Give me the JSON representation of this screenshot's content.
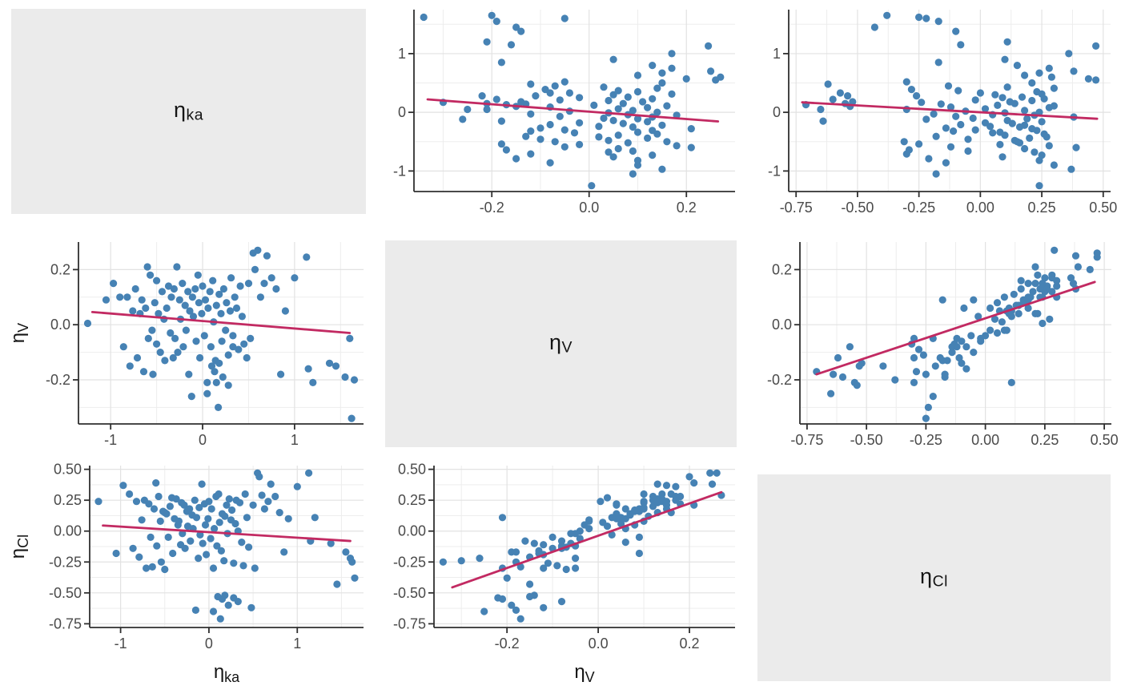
{
  "chart_data": {
    "type": "scatter",
    "subtype": "scatter-matrix",
    "description": "3x3 pairs plot of inter-individual random effects (eta) with scatter panels, linear trend lines and gray diagonal label tiles",
    "grid": "on",
    "legend": "none",
    "style": {
      "point_color": "#4682B4",
      "trend_color": "#C22A62",
      "diag_bg": "#EBEBEB",
      "panel_bg": "#FFFFFF",
      "grid_major": "#E2E2E2",
      "grid_minor": "#EDEDED",
      "axis_color": "#2F2F2F",
      "tick_label_color": "#4A4A4A",
      "title_color": "#141414"
    },
    "layout": {
      "cols": [
        467,
        466,
        467
      ],
      "rows": [
        278,
        282,
        306
      ]
    },
    "variables": [
      {
        "id": "ka",
        "label_base": "η",
        "label_sub": "ka",
        "range": [
          -1.35,
          1.75
        ],
        "ticks": [
          -1,
          0,
          1
        ],
        "tick_labels": [
          "-1",
          "0",
          "1"
        ],
        "minor": [
          -0.5,
          0.5,
          1.5
        ]
      },
      {
        "id": "V",
        "label_base": "η",
        "label_sub": "V",
        "range": [
          -0.36,
          0.3
        ],
        "ticks": [
          -0.2,
          0,
          0.2
        ],
        "tick_labels": [
          "-0.2",
          "0.0",
          "0.2"
        ],
        "minor": [
          -0.3,
          -0.1,
          0.1
        ]
      },
      {
        "id": "Cl",
        "label_base": "η",
        "label_sub": "Cl",
        "range": [
          -0.78,
          0.53
        ],
        "ticks": [
          -0.75,
          -0.5,
          -0.25,
          0,
          0.25,
          0.5
        ],
        "tick_labels": [
          "-0.75",
          "-0.50",
          "-0.25",
          "0.00",
          "0.25",
          "0.50"
        ],
        "minor": [
          -0.625,
          -0.375,
          -0.125,
          0.125,
          0.375
        ]
      }
    ],
    "point_order": [
      "ka",
      "V",
      "Cl"
    ],
    "points": [
      [
        -1.25,
        0.005,
        0.24
      ],
      [
        -1.05,
        0.09,
        -0.18
      ],
      [
        -0.97,
        0.15,
        0.37
      ],
      [
        -0.9,
        0.1,
        0.3
      ],
      [
        -0.86,
        -0.08,
        -0.14
      ],
      [
        -0.82,
        0.1,
        0.24
      ],
      [
        -0.79,
        -0.15,
        -0.21
      ],
      [
        -0.76,
        0.05,
        0.09
      ],
      [
        -0.73,
        0.13,
        0.25
      ],
      [
        -0.71,
        -0.12,
        -0.3
      ],
      [
        -0.68,
        0.04,
        0.22
      ],
      [
        -0.66,
        0.09,
        -0.05
      ],
      [
        -0.64,
        -0.17,
        -0.29
      ],
      [
        -0.62,
        0.06,
        0.18
      ],
      [
        -0.6,
        0.21,
        0.39
      ],
      [
        -0.59,
        -0.05,
        -0.12
      ],
      [
        -0.57,
        0.18,
        0.28
      ],
      [
        -0.55,
        -0.02,
        0.08
      ],
      [
        -0.54,
        -0.18,
        -0.25
      ],
      [
        -0.52,
        0.08,
        0.16
      ],
      [
        -0.5,
        0.16,
        0.15
      ],
      [
        -0.5,
        -0.07,
        -0.31
      ],
      [
        -0.48,
        0.04,
        0.14
      ],
      [
        -0.46,
        -0.1,
        -0.05
      ],
      [
        -0.44,
        0.12,
        0.2
      ],
      [
        -0.42,
        0.02,
        0.27
      ],
      [
        -0.41,
        -0.13,
        -0.18
      ],
      [
        -0.39,
        0.06,
        0.1
      ],
      [
        -0.37,
        0.14,
        0.26
      ],
      [
        -0.35,
        -0.03,
        0.05
      ],
      [
        -0.34,
        0.1,
        0.08
      ],
      [
        -0.32,
        -0.12,
        -0.11
      ],
      [
        -0.31,
        0.13,
        0.23
      ],
      [
        -0.3,
        -0.05,
        -0.02
      ],
      [
        -0.28,
        0.21,
        0.21
      ],
      [
        -0.27,
        -0.1,
        -0.14
      ],
      [
        -0.25,
        0.09,
        0.16
      ],
      [
        -0.24,
        0.02,
        0.04
      ],
      [
        -0.22,
        0.15,
        0.18
      ],
      [
        -0.21,
        -0.08,
        -0.08
      ],
      [
        -0.19,
        0.07,
        0.13
      ],
      [
        -0.18,
        -0.02,
        0.02
      ],
      [
        -0.16,
        0.12,
        0.25
      ],
      [
        -0.15,
        -0.18,
        -0.64
      ],
      [
        -0.14,
        0.05,
        0.11
      ],
      [
        -0.12,
        -0.26,
        -0.22
      ],
      [
        -0.11,
        0.1,
        0.19
      ],
      [
        -0.1,
        0.03,
        -0.03
      ],
      [
        -0.08,
        0.13,
        0.38
      ],
      [
        -0.07,
        -0.06,
        -0.1
      ],
      [
        -0.05,
        0.18,
        0.22
      ],
      [
        -0.04,
        0.08,
        0.05
      ],
      [
        -0.03,
        -0.12,
        -0.19
      ],
      [
        -0.01,
        0.04,
        0.1
      ],
      [
        0.0,
        0.14,
        0.24
      ],
      [
        0.02,
        -0.04,
        -0.06
      ],
      [
        0.03,
        0.09,
        0.18
      ],
      [
        0.05,
        -0.21,
        -0.3
      ],
      [
        0.06,
        0.06,
        0.02
      ],
      [
        0.08,
        0.12,
        0.28
      ],
      [
        0.09,
        -0.08,
        -0.12
      ],
      [
        0.11,
        0.16,
        0.3
      ],
      [
        0.12,
        0.01,
        0.07
      ],
      [
        0.14,
        -0.13,
        -0.16
      ],
      [
        0.15,
        0.07,
        0.14
      ],
      [
        0.17,
        -0.3,
        -0.24
      ],
      [
        0.18,
        0.11,
        0.12
      ],
      [
        0.2,
        0.04,
        0.21
      ],
      [
        0.21,
        -0.06,
        -0.02
      ],
      [
        0.23,
        0.13,
        0.26
      ],
      [
        0.25,
        -0.02,
        0.09
      ],
      [
        0.26,
        0.08,
        0.17
      ],
      [
        0.28,
        -0.11,
        -0.26
      ],
      [
        0.3,
        0.05,
        0.06
      ],
      [
        0.31,
        0.17,
        0.25
      ],
      [
        0.33,
        -0.04,
        0.0
      ],
      [
        0.35,
        0.1,
        0.23
      ],
      [
        0.37,
        0.06,
        -0.09
      ],
      [
        0.39,
        -0.09,
        -0.28
      ],
      [
        0.41,
        0.14,
        0.3
      ],
      [
        0.43,
        0.03,
        0.11
      ],
      [
        0.45,
        -0.07,
        -0.13
      ],
      [
        0.55,
        0.26,
        0.47
      ],
      [
        0.5,
        0.15,
        0.21
      ],
      [
        0.52,
        -0.05,
        -0.3
      ],
      [
        0.57,
        0.2,
        0.44
      ],
      [
        0.6,
        0.27,
        0.29
      ],
      [
        0.63,
        0.1,
        0.18
      ],
      [
        0.67,
        0.15,
        0.24
      ],
      [
        0.7,
        0.25,
        0.38
      ],
      [
        0.75,
        0.17,
        0.28
      ],
      [
        0.8,
        0.13,
        0.15
      ],
      [
        0.85,
        -0.18,
        -0.17
      ],
      [
        1.0,
        0.17,
        0.36
      ],
      [
        0.9,
        0.05,
        0.1
      ],
      [
        0.1,
        -0.15,
        -0.53
      ],
      [
        0.13,
        -0.17,
        -0.71
      ],
      [
        0.15,
        -0.21,
        -0.55
      ],
      [
        0.18,
        -0.14,
        -0.52
      ],
      [
        0.22,
        -0.19,
        -0.6
      ],
      [
        0.28,
        -0.22,
        -0.54
      ],
      [
        0.33,
        -0.08,
        -0.57
      ],
      [
        0.48,
        -0.12,
        -0.62
      ],
      [
        0.05,
        -0.25,
        -0.65
      ],
      [
        1.13,
        0.245,
        0.47
      ],
      [
        1.15,
        -0.16,
        -0.08
      ],
      [
        1.2,
        -0.21,
        0.11
      ],
      [
        1.38,
        -0.14,
        -0.1
      ],
      [
        1.55,
        -0.19,
        -0.17
      ],
      [
        1.6,
        -0.05,
        -0.22
      ],
      [
        1.62,
        -0.34,
        -0.25
      ],
      [
        1.65,
        -0.2,
        -0.38
      ],
      [
        1.45,
        -0.15,
        -0.43
      ]
    ],
    "panels": [
      {
        "type": "label",
        "var": "ka"
      },
      {
        "type": "scatter",
        "x": "V",
        "y": "ka",
        "x_title": false,
        "y_title": false,
        "margins": {
          "l": 50,
          "r": 15,
          "t": 12,
          "b": 39
        },
        "trend": [
          [
            -0.332,
            0.22
          ],
          [
            0.265,
            -0.155
          ]
        ]
      },
      {
        "type": "scatter",
        "x": "Cl",
        "y": "ka",
        "x_title": false,
        "y_title": false,
        "margins": {
          "l": 52,
          "r": 13,
          "t": 12,
          "b": 39
        },
        "trend": [
          [
            -0.725,
            0.17
          ],
          [
            0.475,
            -0.11
          ]
        ]
      },
      {
        "type": "scatter",
        "x": "ka",
        "y": "V",
        "x_title": false,
        "y_title": true,
        "margins": {
          "l": 98,
          "r": 13,
          "t": 24,
          "b": 31
        },
        "trend": [
          [
            -1.2,
            0.046
          ],
          [
            1.6,
            -0.03
          ]
        ]
      },
      {
        "type": "label",
        "var": "V"
      },
      {
        "type": "scatter",
        "x": "Cl",
        "y": "V",
        "x_title": false,
        "y_title": false,
        "margins": {
          "l": 66,
          "r": 12,
          "t": 24,
          "b": 31
        },
        "trend": [
          [
            -0.71,
            -0.18
          ],
          [
            0.46,
            0.155
          ]
        ]
      },
      {
        "type": "scatter",
        "x": "ka",
        "y": "Cl",
        "x_title": true,
        "y_title": true,
        "margins": {
          "l": 112,
          "r": 13,
          "t": 21,
          "b": 83
        },
        "trend": [
          [
            -1.2,
            0.045
          ],
          [
            1.6,
            -0.08
          ]
        ]
      },
      {
        "type": "scatter",
        "x": "V",
        "y": "Cl",
        "x_title": true,
        "y_title": false,
        "margins": {
          "l": 75,
          "r": 15,
          "t": 21,
          "b": 83
        },
        "trend": [
          [
            -0.32,
            -0.455
          ],
          [
            0.27,
            0.315
          ]
        ]
      },
      {
        "type": "label",
        "var": "Cl"
      }
    ]
  }
}
